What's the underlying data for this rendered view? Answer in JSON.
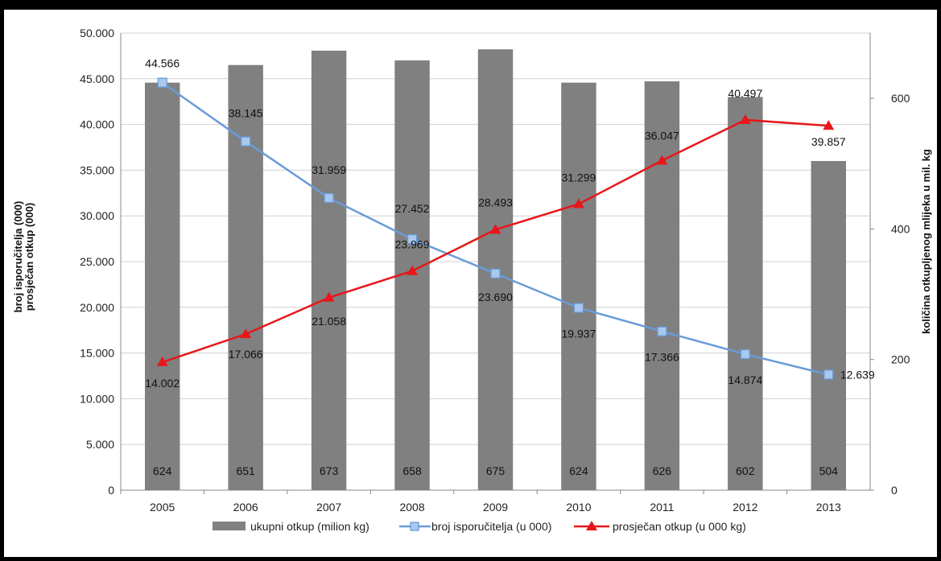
{
  "chart_data": {
    "type": "bar",
    "categories": [
      "2005",
      "2006",
      "2007",
      "2008",
      "2009",
      "2010",
      "2011",
      "2012",
      "2013"
    ],
    "series": [
      {
        "name": "ukupni otkup (milion kg)",
        "kind": "bar",
        "axis": "right",
        "color": "#808080",
        "values": [
          624,
          651,
          673,
          658,
          675,
          624,
          626,
          602,
          504
        ],
        "labels": [
          "624",
          "651",
          "673",
          "658",
          "675",
          "624",
          "626",
          "602",
          "504"
        ]
      },
      {
        "name": "broj isporučitelja (u 000)",
        "kind": "line",
        "axis": "left",
        "color": "#6A9BD8",
        "marker": "square",
        "values": [
          44566,
          38145,
          31959,
          27452,
          23690,
          19937,
          17366,
          14874,
          12639
        ],
        "labels": [
          "44.566",
          "38.145",
          "31.959",
          "27.452",
          "23.690",
          "19.937",
          "17.366",
          "14.874",
          "12.639"
        ]
      },
      {
        "name": "prosječan otkup (u 000 kg)",
        "kind": "line",
        "axis": "left",
        "color": "#E8161B",
        "marker": "triangle",
        "values": [
          14002,
          17066,
          21058,
          23969,
          28493,
          31299,
          36047,
          40497,
          39857
        ],
        "labels": [
          "14.002",
          "17.066",
          "21.058",
          "23.969",
          "28.493",
          "31.299",
          "36.047",
          "40.497",
          "39.857"
        ]
      }
    ],
    "ylabel_left_line1": "broj isporučitelja (000)",
    "ylabel_left_line2": "prosječan otkup (000)",
    "ylabel_right": "količina otkupljenog mlijeka u mil. kg",
    "ylim_left": [
      0,
      50000
    ],
    "ylim_right": [
      0,
      700
    ],
    "yticks_left": [
      "0",
      "5.000",
      "10.000",
      "15.000",
      "20.000",
      "25.000",
      "30.000",
      "35.000",
      "40.000",
      "45.000",
      "50.000"
    ],
    "yticks_right": [
      "0",
      "200",
      "400",
      "600"
    ],
    "grid": true,
    "legend_position": "bottom"
  }
}
